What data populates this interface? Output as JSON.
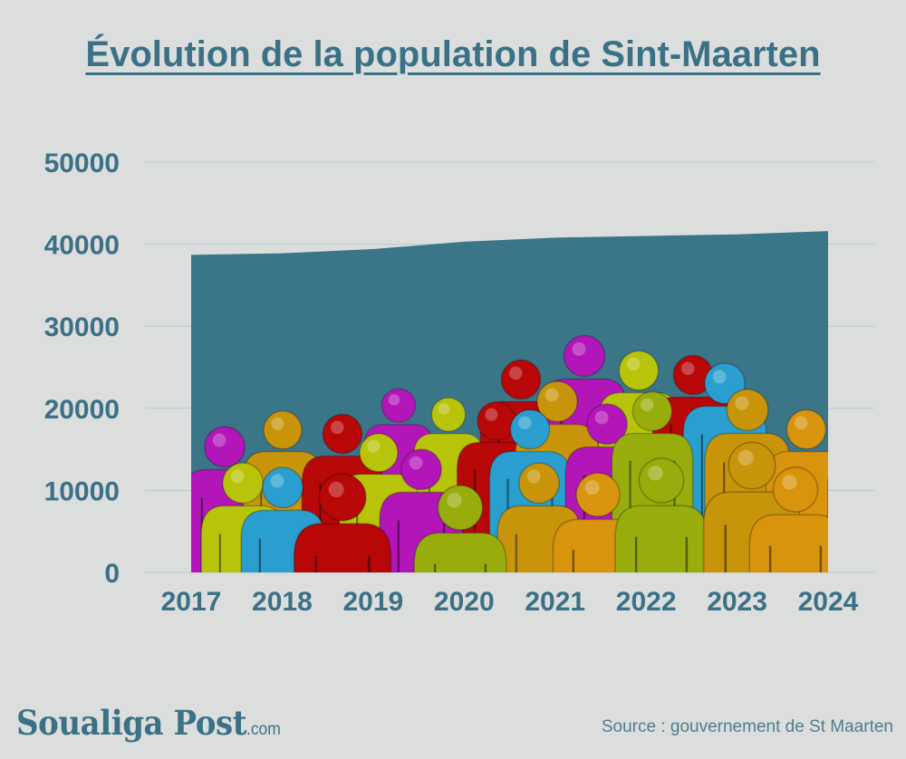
{
  "chart_data": {
    "type": "area",
    "title": "Évolution de la population de Sint-Maarten",
    "categories": [
      "2017",
      "2018",
      "2019",
      "2020",
      "2021",
      "2022",
      "2023",
      "2024"
    ],
    "series": [
      {
        "values": [
          38700,
          38900,
          39400,
          40300,
          40800,
          41000,
          41200,
          41600
        ]
      }
    ],
    "yticks": [
      "0",
      "10000",
      "20000",
      "30000",
      "40000",
      "50000"
    ],
    "ylim": [
      0,
      50000
    ],
    "grid": true,
    "xlabel": "",
    "ylabel": "",
    "colors": {
      "area": "#3b7588",
      "text": "#3b7186",
      "grid": "#b6c9cd"
    }
  },
  "branding": {
    "logo_main": "Soualiga Post",
    "logo_domain": ".com"
  },
  "source": "Source : gouvernement de St Maarten",
  "illustration": {
    "icon": "people-crowd-icon",
    "colors": [
      "#b316b8",
      "#b8c40a",
      "#c8950a",
      "#2a9fcf",
      "#b80707",
      "#98ad0c",
      "#d7940c"
    ]
  }
}
